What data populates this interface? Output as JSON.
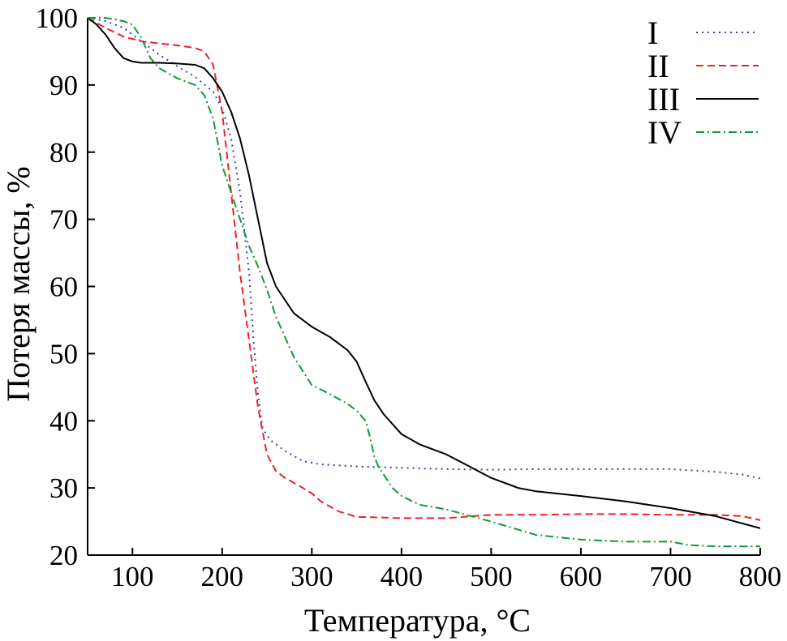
{
  "chart_data": {
    "type": "line",
    "title": "",
    "xlabel": "Температура, °C",
    "ylabel": "Потеря массы, %",
    "xlim": [
      50,
      800
    ],
    "ylim": [
      20,
      100
    ],
    "xticks": [
      100,
      200,
      300,
      400,
      500,
      600,
      700,
      800
    ],
    "yticks": [
      20,
      30,
      40,
      50,
      60,
      70,
      80,
      90,
      100
    ],
    "grid": false,
    "legend_position": "top-right",
    "series": [
      {
        "name": "I",
        "color": "#3344bb",
        "style": "dotted",
        "x": [
          50,
          70,
          90,
          110,
          130,
          150,
          170,
          190,
          200,
          210,
          220,
          230,
          235,
          240,
          245,
          250,
          255,
          270,
          290,
          310,
          350,
          400,
          450,
          500,
          550,
          600,
          650,
          700,
          750,
          780,
          800
        ],
        "y": [
          100,
          99.5,
          98.5,
          96.5,
          94.5,
          92.8,
          91.2,
          89,
          86.5,
          82,
          74,
          62,
          52,
          44,
          39,
          37.8,
          37,
          35.5,
          34,
          33.5,
          33.2,
          33,
          32.8,
          32.7,
          32.8,
          32.8,
          32.8,
          32.8,
          32.4,
          32,
          31.4
        ]
      },
      {
        "name": "II",
        "color": "#ee2222",
        "style": "dashed",
        "x": [
          50,
          70,
          90,
          110,
          130,
          150,
          170,
          180,
          190,
          200,
          210,
          220,
          230,
          240,
          250,
          260,
          270,
          290,
          300,
          310,
          330,
          350,
          400,
          450,
          500,
          550,
          600,
          650,
          700,
          750,
          780,
          800
        ],
        "y": [
          100,
          98.5,
          97.2,
          96.5,
          96.2,
          95.9,
          95.5,
          95,
          93,
          86,
          74,
          62,
          52,
          42,
          35,
          32.5,
          31.5,
          30,
          29.2,
          28,
          26.5,
          25.7,
          25.5,
          25.5,
          26,
          26,
          26.1,
          26.1,
          26,
          26,
          25.8,
          25.2
        ]
      },
      {
        "name": "III",
        "color": "#000000",
        "style": "solid",
        "x": [
          50,
          60,
          70,
          80,
          90,
          100,
          110,
          130,
          150,
          170,
          180,
          190,
          200,
          210,
          220,
          230,
          240,
          250,
          260,
          280,
          300,
          320,
          340,
          350,
          360,
          370,
          380,
          400,
          420,
          450,
          470,
          500,
          530,
          550,
          600,
          650,
          700,
          750,
          800
        ],
        "y": [
          100,
          99,
          97.5,
          95.5,
          94,
          93.5,
          93.3,
          93.3,
          93.2,
          93,
          92.5,
          91,
          89,
          86,
          82,
          76.5,
          70,
          63.5,
          60,
          56,
          54,
          52.5,
          50.5,
          48.8,
          45.8,
          43,
          41,
          38,
          36.5,
          35,
          33.6,
          31.5,
          30,
          29.5,
          28.8,
          28,
          27,
          25.8,
          24
        ]
      },
      {
        "name": "IV",
        "color": "#119933",
        "style": "dash-dot",
        "x": [
          50,
          70,
          90,
          100,
          110,
          120,
          130,
          150,
          170,
          180,
          190,
          200,
          210,
          220,
          230,
          240,
          250,
          260,
          280,
          300,
          320,
          340,
          350,
          360,
          365,
          370,
          375,
          380,
          390,
          400,
          420,
          450,
          500,
          550,
          600,
          650,
          700,
          720,
          750,
          800
        ],
        "y": [
          100,
          100,
          99.5,
          99,
          97,
          94,
          92.5,
          91,
          90,
          88.5,
          85,
          78,
          74,
          70,
          66,
          63,
          59.5,
          55.5,
          49.5,
          45.3,
          44,
          42.5,
          41.5,
          40,
          37.5,
          34.5,
          33,
          32,
          30,
          28.8,
          27.5,
          26.8,
          25,
          23,
          22.3,
          22,
          22,
          21.5,
          21.3,
          21.3
        ]
      }
    ]
  }
}
